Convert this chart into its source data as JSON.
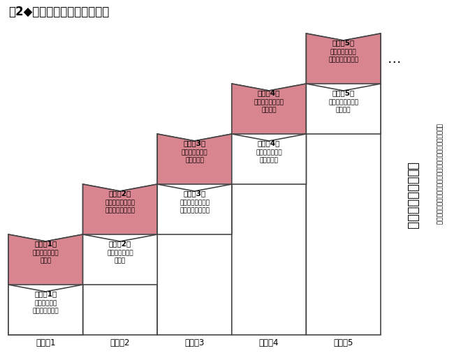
{
  "title": "図2◆目的と手段の入れ替わり",
  "levels": [
    "レベル1",
    "レベル2",
    "レベル3",
    "レベル4",
    "レベル5"
  ],
  "mokuteki_labels": [
    "【目的1】",
    "【目的2】",
    "【目的3】",
    "【目的4】",
    "【目的5】"
  ],
  "shudan_labels": [
    "【手段1】",
    "【手段2】",
    "【手段3】",
    "【手段4】",
    "【手段5】"
  ],
  "mokuteki_texts": [
    "テストでいい点\nを取る",
    "希望の大学に入り\n好きな研究をする",
    "専門を生かした\n就職をする",
    "仕事経験を積んで\n成長する",
    "社会貢献できる\nような起業をする"
  ],
  "shudan_texts": [
    "・算数を習う\n・漢字を覚える",
    "テストでいい点\nを取る",
    "希望の大学に入り\n好きな研究をする",
    "専門を生かした\n就職をする",
    "仕事経験を積んで\n成長する"
  ],
  "mokuteki_color": "#d9858f",
  "shudan_color": "#ffffff",
  "border_color": "#444444",
  "text_color": "#000000",
  "side_text_large": "さらなる目的に続く",
  "side_text_small": "（おそらく無限に続く。より大きな意志を持ち続ける限り）",
  "dots": "…",
  "bg_color": "#ffffff"
}
